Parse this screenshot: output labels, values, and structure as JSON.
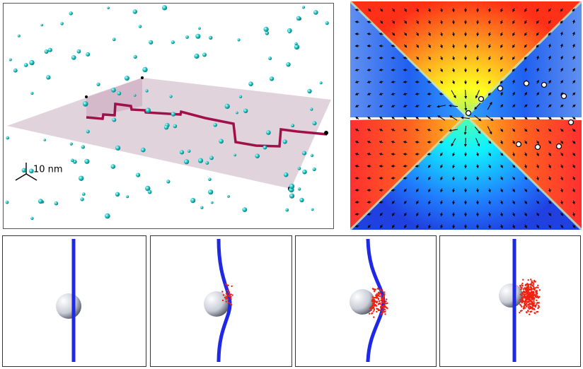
{
  "scale_bar": {
    "label": "10 nm"
  }
}
